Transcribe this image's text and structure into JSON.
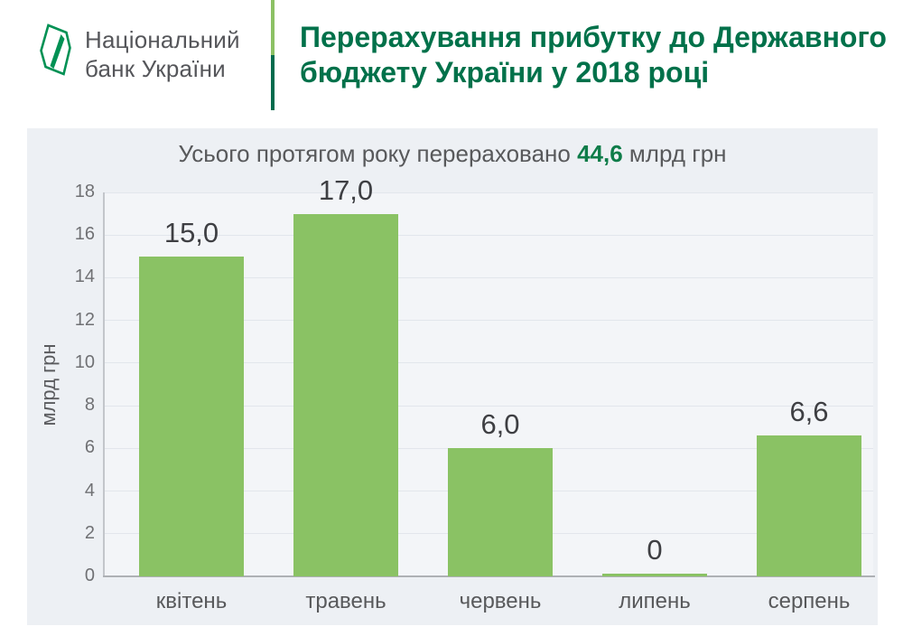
{
  "header": {
    "logo_lines": [
      "Національний",
      "банк України"
    ],
    "title_lines": [
      "Перерахування прибутку до Державного",
      "бюджету України у 2018 році"
    ]
  },
  "colors": {
    "title_green": "#00714a",
    "divider_light_green": "#8cc164",
    "divider_dark_green": "#006b4d",
    "emblem_green": "#009154",
    "total_green": "#0e7c49",
    "bar_green": "#8ac264",
    "panel_bg": "#edf0f4",
    "text_gray": "#58595b"
  },
  "chart_data": {
    "type": "bar",
    "title_prefix": "Усього протягом року перераховано ",
    "title_value": "44,6",
    "title_suffix": " млрд грн",
    "categories": [
      "квітень",
      "травень",
      "червень",
      "липень",
      "серпень"
    ],
    "values": [
      15.0,
      17.0,
      6.0,
      0,
      6.6
    ],
    "value_labels": [
      "15,0",
      "17,0",
      "6,0",
      "0",
      "6,6"
    ],
    "xlabel": "",
    "ylabel": "млрд грн",
    "ylim": [
      0,
      18
    ],
    "ytick_step": 2,
    "grid": true,
    "legend": false,
    "bar_color": "#8ac264"
  }
}
